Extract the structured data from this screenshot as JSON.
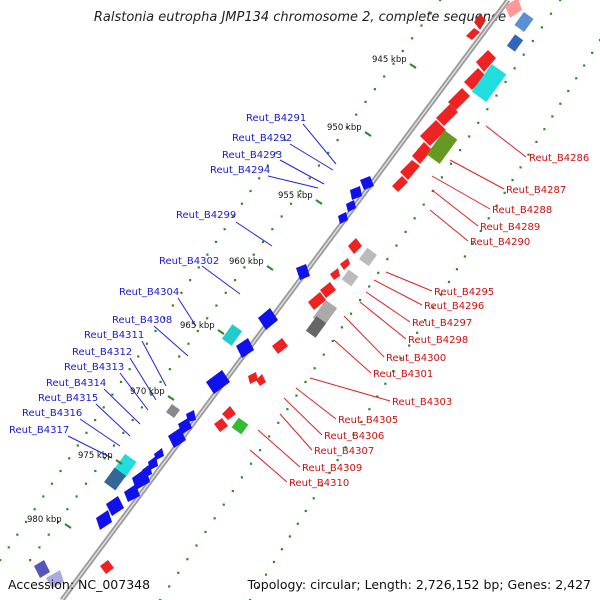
{
  "title": "Ralstonia eutropha JMP134 chromosome 2, complete sequence",
  "accession": "Accession: NC_007348",
  "topology": "Topology: circular; Length: 2,726,152 bp; Genes: 2,427",
  "ticks": [
    {
      "label": "945 kbp",
      "pos": 945
    },
    {
      "label": "950 kbp",
      "pos": 950
    },
    {
      "label": "955 kbp",
      "pos": 955
    },
    {
      "label": "960 kbp",
      "pos": 960
    },
    {
      "label": "965 kbp",
      "pos": 965
    },
    {
      "label": "970 kbp",
      "pos": 970
    },
    {
      "label": "975 kbp",
      "pos": 975
    },
    {
      "label": "980 kbp",
      "pos": 980
    }
  ],
  "reverse_genes": [
    "Reut_B4291",
    "Reut_B4292",
    "Reut_B4293",
    "Reut_B4294",
    "Reut_B4299",
    "Reut_B4302",
    "Reut_B4304",
    "Reut_B4308",
    "Reut_B4311",
    "Reut_B4312",
    "Reut_B4313",
    "Reut_B4314",
    "Reut_B4315",
    "Reut_B4316",
    "Reut_B4317"
  ],
  "forward_genes": [
    "Reut_B4286",
    "Reut_B4287",
    "Reut_B4288",
    "Reut_B4289",
    "Reut_B4290",
    "Reut_B4295",
    "Reut_B4296",
    "Reut_B4297",
    "Reut_B4298",
    "Reut_B4300",
    "Reut_B4301",
    "Reut_B4303",
    "Reut_B4305",
    "Reut_B4306",
    "Reut_B4307",
    "Reut_B4309",
    "Reut_B4310"
  ],
  "colors": {
    "forward": "#ee1111",
    "reverse": "#1111ee",
    "cds_other": "#888888",
    "rna": "#22cccc",
    "misc": "#66aa22",
    "backbone": "#888888"
  }
}
